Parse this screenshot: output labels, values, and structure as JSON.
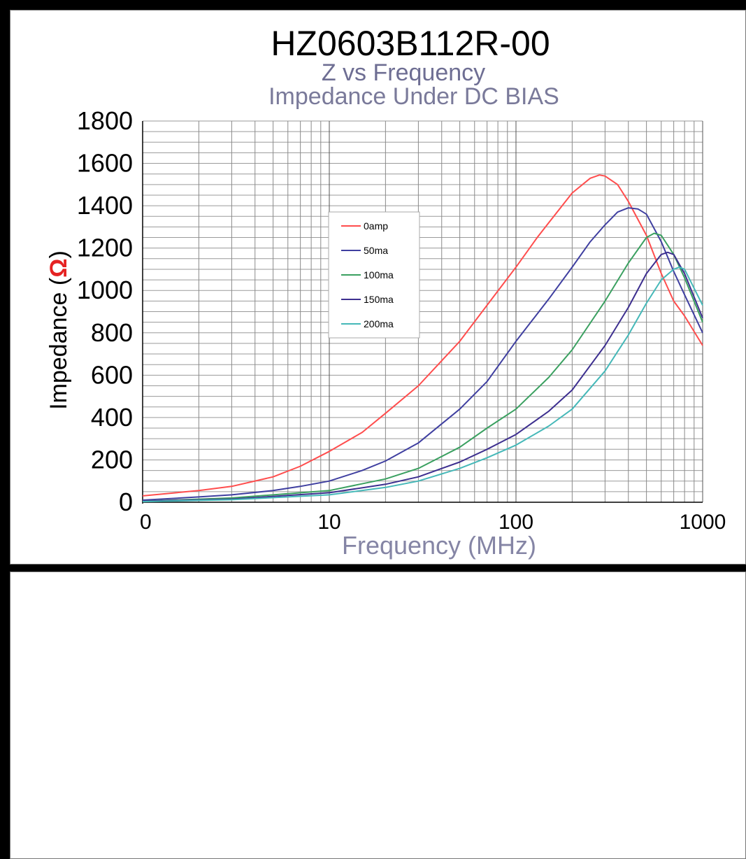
{
  "chart_data": {
    "type": "line",
    "title": "HZ0603B112R-00",
    "subtitle_lines": [
      "Z vs Frequency",
      "Impedance Under DC BIAS"
    ],
    "xlabel": "Frequency (MHz)",
    "ylabel": "Impedance (",
    "ylabel_symbol": "Ω",
    "ylabel_close": ")",
    "x_scale": "log",
    "xlim": [
      1,
      1000
    ],
    "ylim": [
      0,
      1800
    ],
    "x_tick_labels": [
      "0",
      "10",
      "100",
      "1000"
    ],
    "y_tick_labels": [
      "0",
      "200",
      "400",
      "600",
      "800",
      "1000",
      "1200",
      "1400",
      "1600",
      "1800"
    ],
    "grid": true,
    "legend_position": "top-left, inside plot",
    "series": [
      {
        "name": "0amp",
        "color": "#ff4d4d",
        "x": [
          1,
          2,
          3,
          5,
          7,
          10,
          15,
          20,
          30,
          50,
          70,
          100,
          130,
          150,
          200,
          250,
          280,
          300,
          350,
          400,
          500,
          600,
          700,
          800,
          1000
        ],
        "y": [
          30,
          55,
          75,
          120,
          170,
          240,
          330,
          420,
          550,
          760,
          930,
          1110,
          1250,
          1320,
          1460,
          1530,
          1545,
          1540,
          1500,
          1420,
          1260,
          1080,
          950,
          880,
          740
        ]
      },
      {
        "name": "50ma",
        "color": "#3f3fa0",
        "x": [
          1,
          2,
          3,
          5,
          7,
          10,
          15,
          20,
          30,
          50,
          70,
          100,
          150,
          200,
          250,
          300,
          350,
          400,
          450,
          500,
          600,
          700,
          800,
          1000
        ],
        "y": [
          10,
          25,
          35,
          55,
          75,
          100,
          150,
          195,
          280,
          440,
          570,
          760,
          960,
          1110,
          1230,
          1310,
          1370,
          1390,
          1385,
          1360,
          1230,
          1090,
          980,
          800
        ]
      },
      {
        "name": "100ma",
        "color": "#3aa060",
        "x": [
          1,
          3,
          10,
          20,
          30,
          50,
          70,
          100,
          150,
          200,
          300,
          400,
          500,
          550,
          600,
          700,
          800,
          1000
        ],
        "y": [
          5,
          20,
          55,
          110,
          160,
          260,
          350,
          440,
          590,
          720,
          950,
          1130,
          1250,
          1270,
          1260,
          1170,
          1060,
          850
        ]
      },
      {
        "name": "150ma",
        "color": "#3d2f8f",
        "x": [
          1,
          3,
          10,
          20,
          30,
          50,
          70,
          100,
          150,
          200,
          300,
          400,
          500,
          600,
          650,
          700,
          800,
          1000
        ],
        "y": [
          5,
          15,
          45,
          85,
          120,
          190,
          250,
          320,
          430,
          530,
          740,
          920,
          1080,
          1170,
          1180,
          1170,
          1080,
          870
        ]
      },
      {
        "name": "200ma",
        "color": "#45b8b8",
        "x": [
          1,
          3,
          10,
          20,
          30,
          50,
          70,
          100,
          150,
          200,
          300,
          400,
          500,
          600,
          700,
          750,
          800,
          1000
        ],
        "y": [
          3,
          12,
          35,
          70,
          100,
          160,
          210,
          270,
          360,
          440,
          620,
          790,
          940,
          1050,
          1100,
          1110,
          1100,
          930
        ]
      }
    ]
  }
}
